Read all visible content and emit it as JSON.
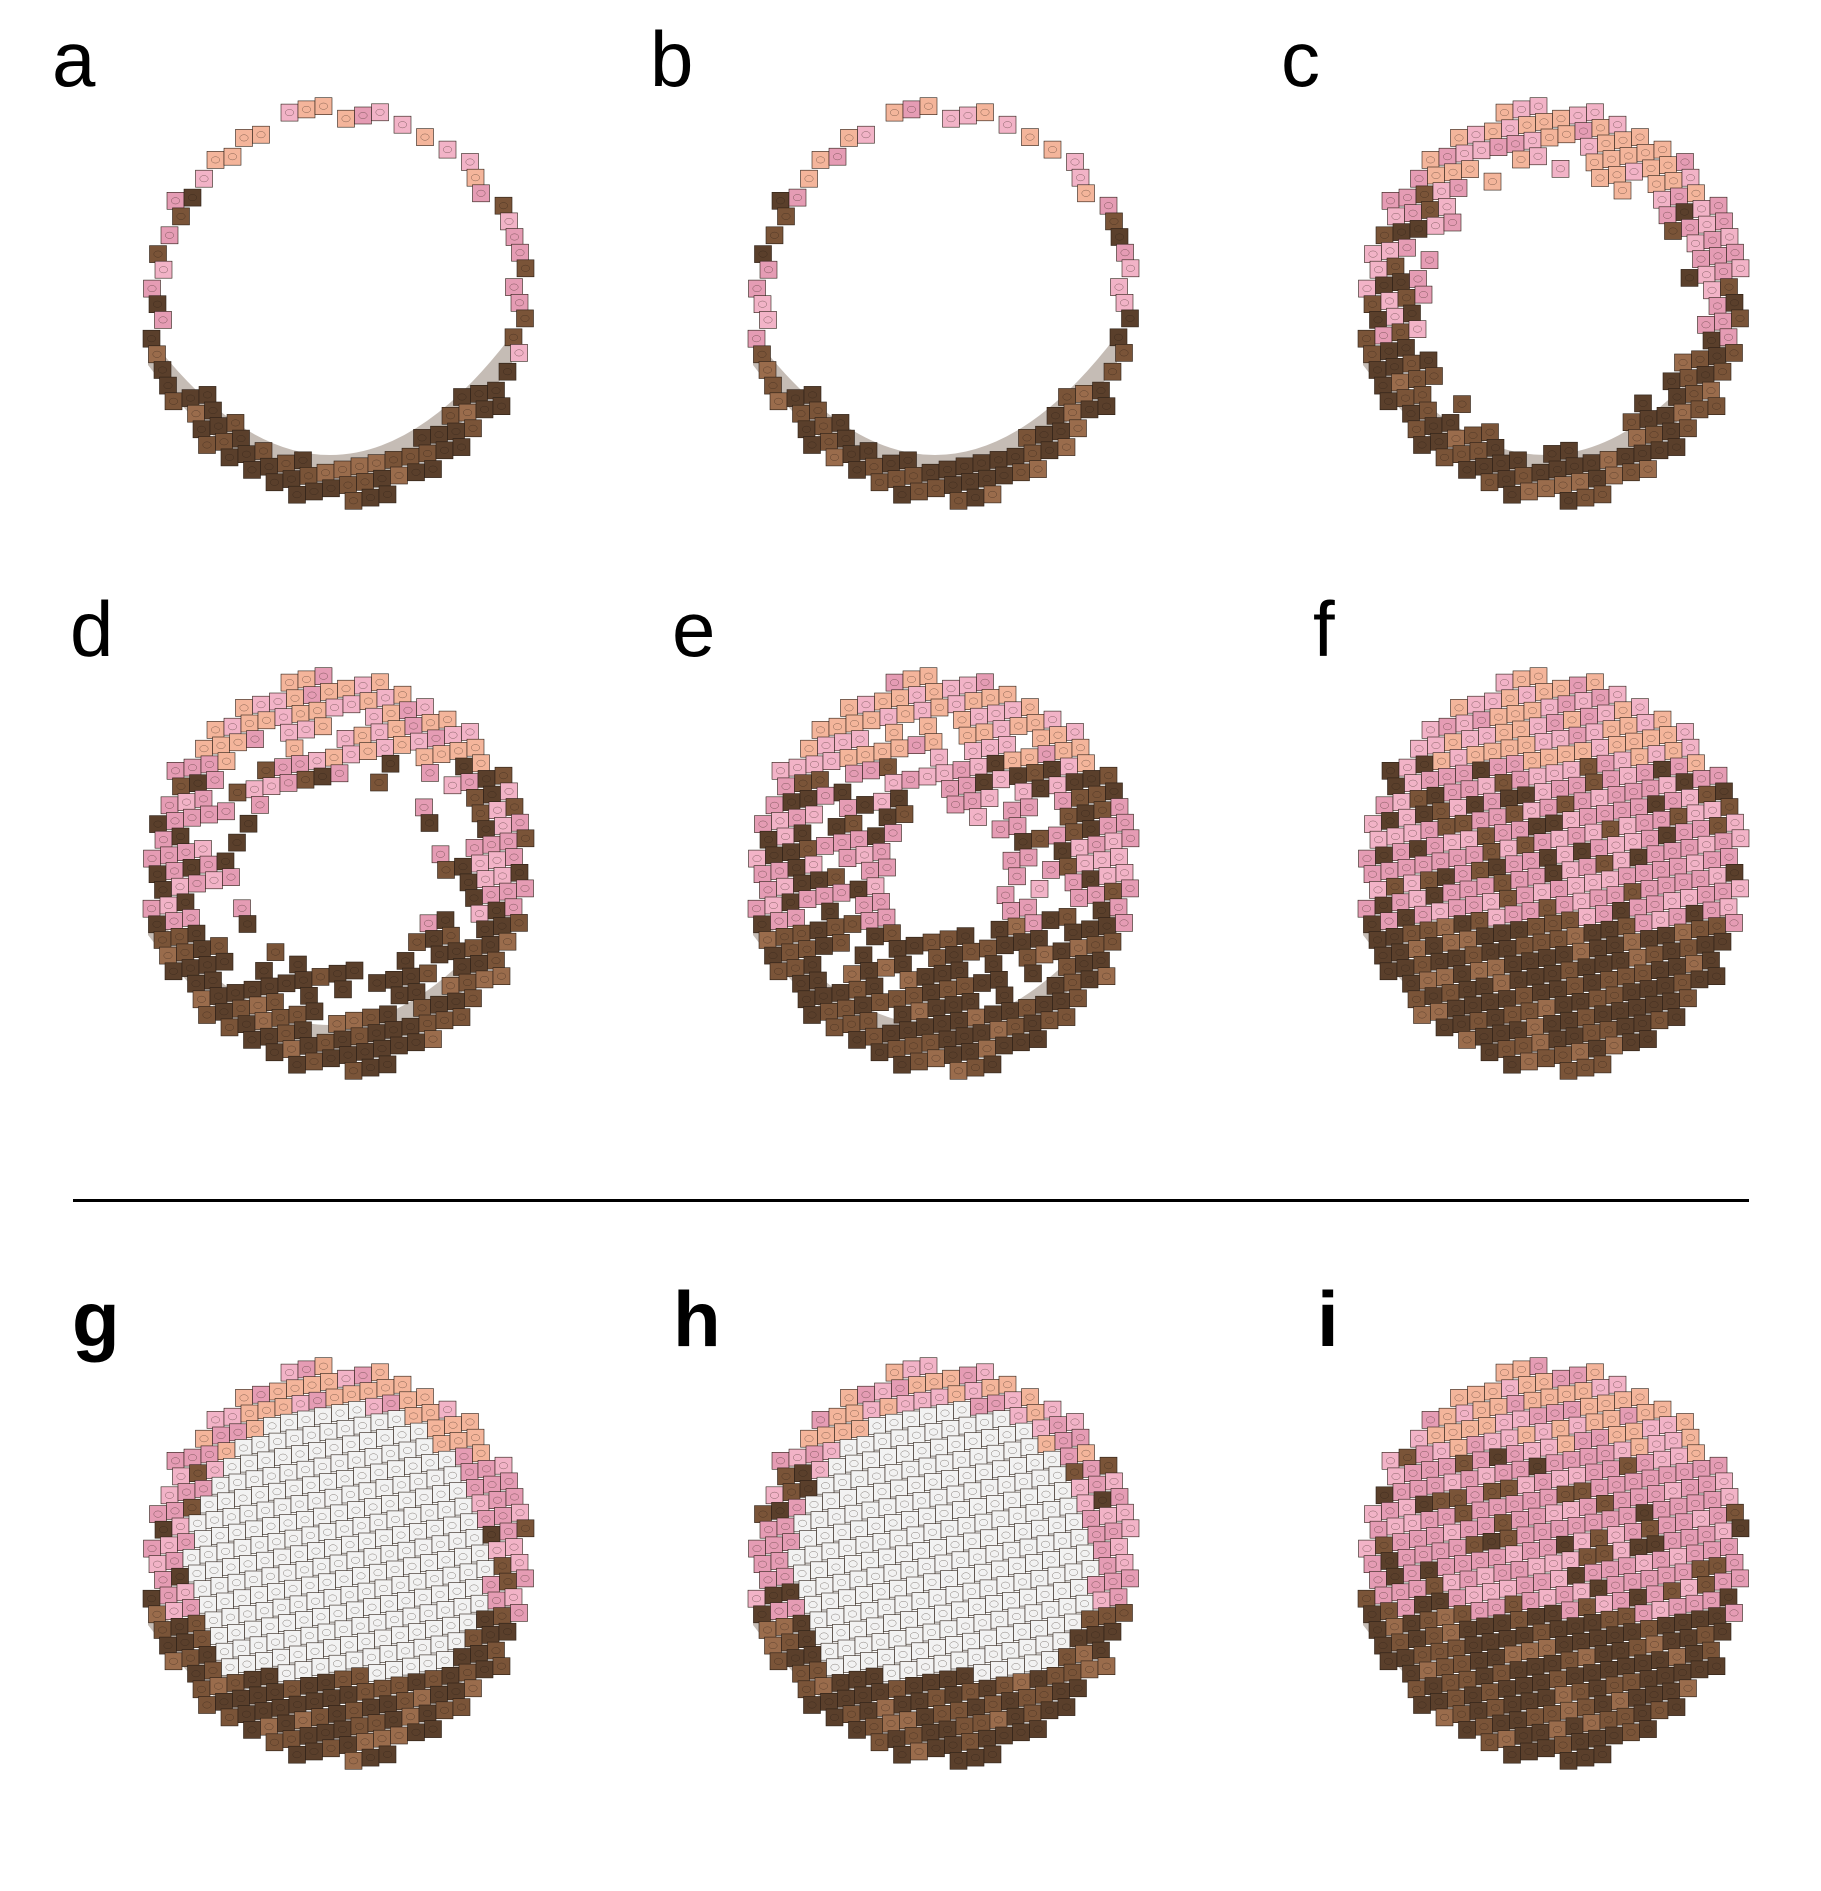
{
  "figure": {
    "description_free": true,
    "panels": [
      {
        "id": "a",
        "label": "a",
        "bold": false,
        "stage": 1,
        "fill": 0.0,
        "hole": 1.0,
        "white_top": false
      },
      {
        "id": "b",
        "label": "b",
        "bold": false,
        "stage": 2,
        "fill": 0.25,
        "hole": 1.0,
        "white_top": false
      },
      {
        "id": "c",
        "label": "c",
        "bold": false,
        "stage": 3,
        "fill": 0.45,
        "hole": 0.8,
        "white_top": false
      },
      {
        "id": "d",
        "label": "d",
        "bold": false,
        "stage": 4,
        "fill": 0.65,
        "hole": 0.55,
        "white_top": false
      },
      {
        "id": "e",
        "label": "e",
        "bold": false,
        "stage": 5,
        "fill": 0.8,
        "hole": 0.25,
        "white_top": false
      },
      {
        "id": "f",
        "label": "f",
        "bold": false,
        "stage": 6,
        "fill": 1.0,
        "hole": 0.0,
        "white_top": false
      },
      {
        "id": "g",
        "label": "g",
        "bold": true,
        "stage": 7,
        "fill": 0.3,
        "hole": 0.0,
        "white_top": true
      },
      {
        "id": "h",
        "label": "h",
        "bold": true,
        "stage": 8,
        "fill": 0.65,
        "hole": 0.0,
        "white_top": true
      },
      {
        "id": "i",
        "label": "i",
        "bold": true,
        "stage": 9,
        "fill": 1.0,
        "hole": 0.0,
        "white_top": false
      }
    ],
    "colors": {
      "brown_dark": "#5a3f2b",
      "brown": "#7a5438",
      "brown_light": "#9a6c4c",
      "pink": "#e59cb4",
      "pink_light": "#f2b3c7",
      "salmon": "#f4b59b",
      "white_brick": "#f2f2f2",
      "stroke": "#2b1f16",
      "divider": "#000000"
    }
  }
}
